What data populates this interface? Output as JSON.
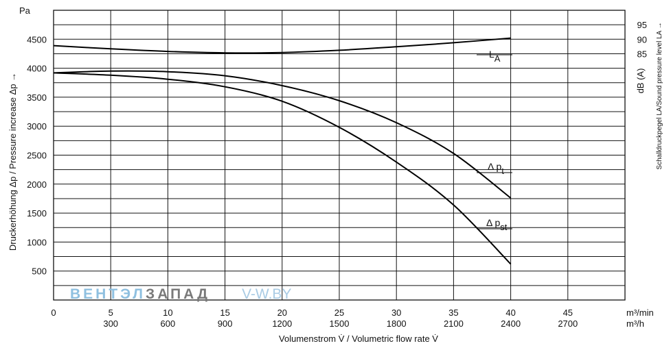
{
  "chart_data": {
    "type": "line",
    "x_unit_primary": "m³/min",
    "x_unit_secondary": "m³/h",
    "x_ticks_min": [
      "0",
      "5",
      "10",
      "15",
      "20",
      "25",
      "30",
      "35",
      "40",
      "45"
    ],
    "x_ticks_h": [
      "300",
      "600",
      "900",
      "1200",
      "1500",
      "1800",
      "2100",
      "2400",
      "2700"
    ],
    "xlim": [
      0,
      50
    ],
    "xlabel": "Volumenstrom V̇ / Volumetric flow rate V̇",
    "y_unit": "Pa",
    "y_ticks": [
      "500",
      "1000",
      "1500",
      "2000",
      "2500",
      "3000",
      "3500",
      "4000",
      "4500"
    ],
    "ylim": [
      0,
      5000
    ],
    "ylabel": "Druckerhöhung Δp / Pressure increase Δp →",
    "y2_unit": "dB (A)",
    "y2_ticks": [
      "85",
      "90",
      "95"
    ],
    "y2label": "Schalldruckpegel LA/Sound pressure level LA →",
    "grid": true,
    "series": [
      {
        "name": "LA",
        "label_main": "L",
        "label_sub": "A",
        "x": [
          0,
          5,
          10,
          15,
          20,
          25,
          30,
          35,
          40
        ],
        "y": [
          4390,
          4335,
          4290,
          4265,
          4270,
          4310,
          4370,
          4440,
          4520
        ]
      },
      {
        "name": "Δ pt",
        "label_main": "Δ p",
        "label_sub": "t",
        "x": [
          0,
          5,
          10,
          15,
          20,
          25,
          30,
          35,
          40
        ],
        "y": [
          3920,
          3950,
          3940,
          3870,
          3700,
          3440,
          3060,
          2530,
          1760
        ]
      },
      {
        "name": "Δ pst",
        "label_main": "Δ p",
        "label_sub": "st",
        "x": [
          0,
          5,
          10,
          15,
          20,
          25,
          30,
          35,
          40
        ],
        "y": [
          3920,
          3880,
          3810,
          3680,
          3430,
          2980,
          2380,
          1640,
          620
        ]
      }
    ]
  },
  "watermark": {
    "part1": "ВЕНТЭЛ",
    "part2": "ЗАПАД",
    "part3": "V-W.BY",
    "color1": "#8fc0e0",
    "color2": "#7a7a7a",
    "color3": "#a9cbe4"
  }
}
